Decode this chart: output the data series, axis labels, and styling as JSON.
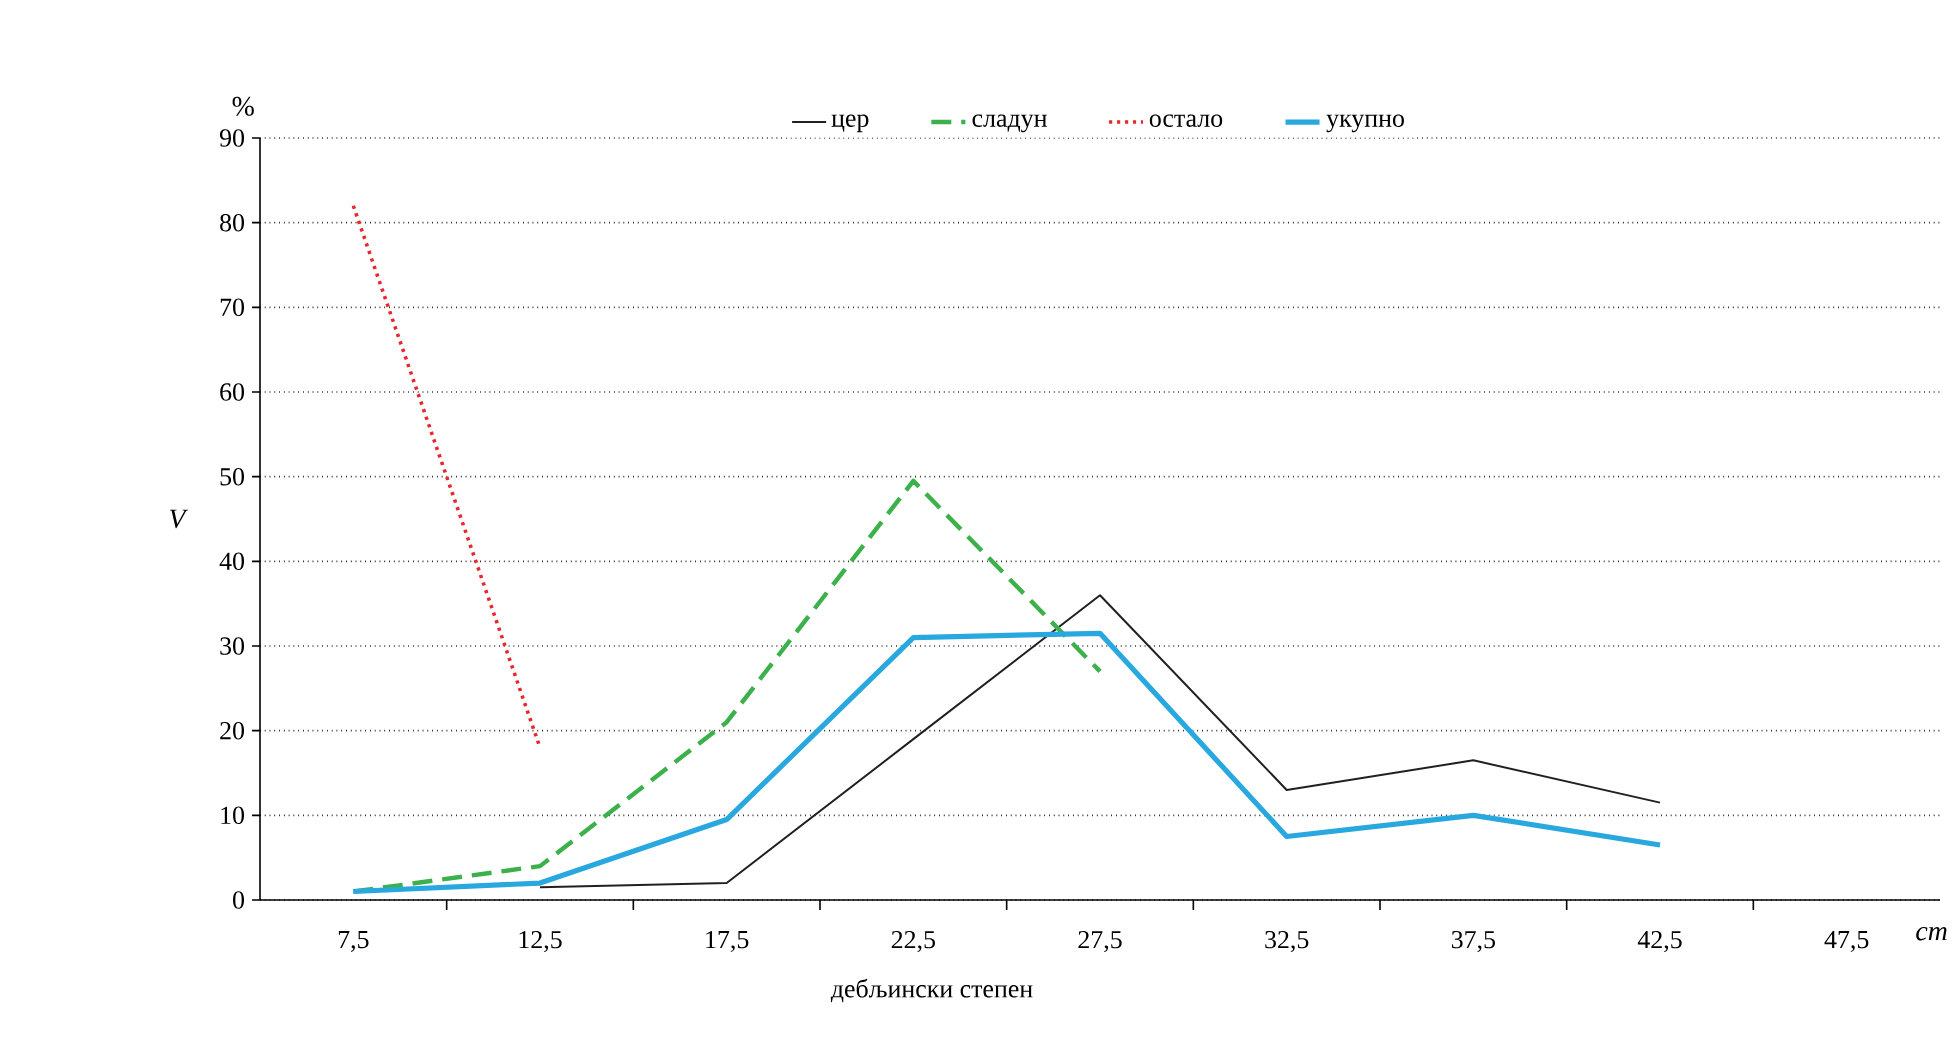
{
  "chart_data": {
    "type": "line",
    "categories": [
      "7,5",
      "12,5",
      "17,5",
      "22,5",
      "27,5",
      "32,5",
      "37,5",
      "42,5",
      "47,5"
    ],
    "series": [
      {
        "name": "цер",
        "color": "#231f20",
        "line_style": "solid",
        "values": [
          null,
          1.5,
          2,
          19,
          36,
          13,
          16.5,
          11.5,
          null
        ]
      },
      {
        "name": "сладун",
        "color": "#3cb04a",
        "line_style": "dashed",
        "values": [
          1,
          4,
          21,
          49.5,
          27,
          null,
          null,
          null,
          null
        ]
      },
      {
        "name": "остало",
        "color": "#e8262b",
        "line_style": "dotted",
        "values": [
          82,
          18,
          null,
          null,
          null,
          null,
          null,
          null,
          null
        ]
      },
      {
        "name": "укупно",
        "color": "#29a8e0",
        "line_style": "solid",
        "values": [
          1,
          2,
          9.5,
          31,
          31.5,
          7.5,
          10,
          6.5,
          null
        ]
      }
    ],
    "ylim": [
      0,
      90
    ],
    "yticks": [
      0,
      10,
      20,
      30,
      40,
      50,
      60,
      70,
      80,
      90
    ],
    "ylabel": "V",
    "xlabel": "дебљински степен",
    "annotations": [
      "%",
      "cm"
    ],
    "grid": "y",
    "legend": "top",
    "marker": "none"
  }
}
